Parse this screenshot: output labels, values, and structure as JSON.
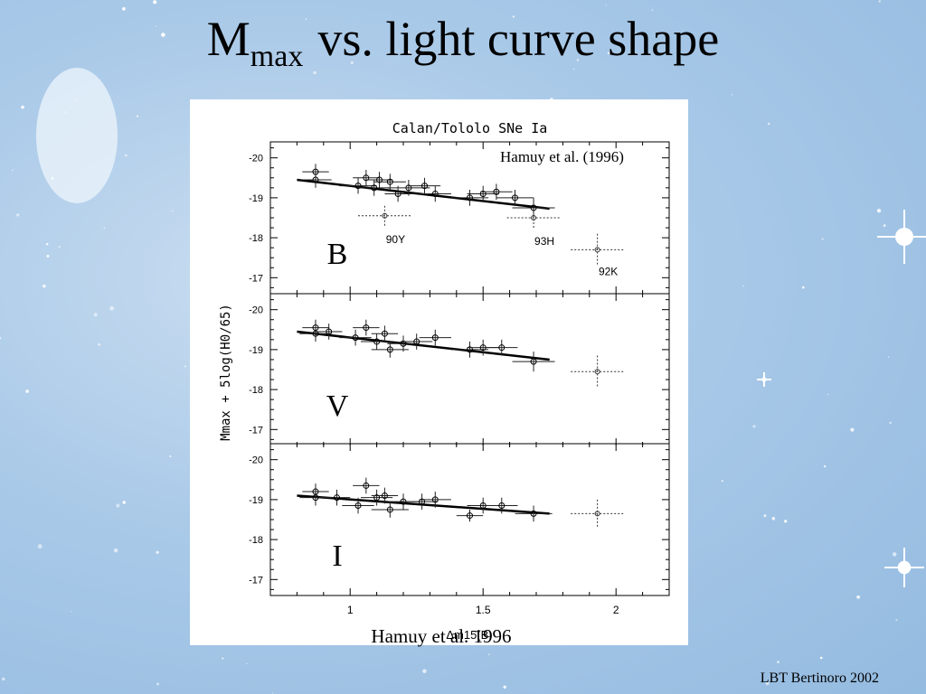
{
  "slide": {
    "title_main": "M",
    "title_sub": "max",
    "title_rest": "vs. light curve shape",
    "credit_top": "Hamuy et al. (1996)",
    "credit_bottom": "Hamuy et al. 1996",
    "footer": "LBT Bertinoro 2002"
  },
  "colors": {
    "background": "#a9c9e8",
    "panel": "#ffffff",
    "ink": "#000000"
  },
  "chart_data": {
    "type": "scatter",
    "title": "Calan/Tololo SNe Ia",
    "xlabel": "Δm15(B)",
    "ylabel": "Mmax + 5log(H0/65)",
    "xlim": [
      0.7,
      2.2
    ],
    "ylim": [
      -16.6,
      -20.4
    ],
    "x_ticks": [
      "1",
      "1.5",
      "2"
    ],
    "y_ticks": [
      "-20",
      "-19",
      "-18",
      "-17"
    ],
    "panels": [
      {
        "band": "B",
        "fit": [
          [
            0.8,
            -19.45
          ],
          [
            1.75,
            -18.73
          ]
        ],
        "points": [
          {
            "x": 0.87,
            "y": -19.65,
            "xe": 0.05,
            "ye": 0.2
          },
          {
            "x": 0.87,
            "y": -19.45,
            "xe": 0.06,
            "ye": 0.2
          },
          {
            "x": 1.03,
            "y": -19.3,
            "xe": 0.07,
            "ye": 0.2
          },
          {
            "x": 1.06,
            "y": -19.5,
            "xe": 0.05,
            "ye": 0.2
          },
          {
            "x": 1.09,
            "y": -19.25,
            "xe": 0.06,
            "ye": 0.2
          },
          {
            "x": 1.11,
            "y": -19.45,
            "xe": 0.05,
            "ye": 0.2
          },
          {
            "x": 1.15,
            "y": -19.4,
            "xe": 0.06,
            "ye": 0.2
          },
          {
            "x": 1.18,
            "y": -19.1,
            "xe": 0.05,
            "ye": 0.2
          },
          {
            "x": 1.22,
            "y": -19.25,
            "xe": 0.08,
            "ye": 0.2
          },
          {
            "x": 1.28,
            "y": -19.3,
            "xe": 0.06,
            "ye": 0.2
          },
          {
            "x": 1.32,
            "y": -19.1,
            "xe": 0.06,
            "ye": 0.2
          },
          {
            "x": 1.45,
            "y": -19.0,
            "xe": 0.07,
            "ye": 0.2
          },
          {
            "x": 1.5,
            "y": -19.1,
            "xe": 0.06,
            "ye": 0.2
          },
          {
            "x": 1.55,
            "y": -19.15,
            "xe": 0.06,
            "ye": 0.2
          },
          {
            "x": 1.62,
            "y": -19.0,
            "xe": 0.07,
            "ye": 0.2
          },
          {
            "x": 1.69,
            "y": -18.75,
            "xe": 0.08,
            "ye": 0.25
          }
        ],
        "outliers": [
          {
            "name": "90Y",
            "x": 1.13,
            "y": -18.55,
            "xe": 0.1,
            "ye": 0.25
          },
          {
            "name": "93H",
            "x": 1.69,
            "y": -18.5,
            "xe": 0.1,
            "ye": 0.25
          },
          {
            "name": "92K",
            "x": 1.93,
            "y": -17.7,
            "xe": 0.1,
            "ye": 0.4
          }
        ]
      },
      {
        "band": "V",
        "fit": [
          [
            0.8,
            -19.45
          ],
          [
            1.75,
            -18.75
          ]
        ],
        "points": [
          {
            "x": 0.87,
            "y": -19.55,
            "xe": 0.05,
            "ye": 0.2
          },
          {
            "x": 0.87,
            "y": -19.4,
            "xe": 0.06,
            "ye": 0.2
          },
          {
            "x": 0.92,
            "y": -19.45,
            "xe": 0.05,
            "ye": 0.2
          },
          {
            "x": 1.02,
            "y": -19.3,
            "xe": 0.06,
            "ye": 0.2
          },
          {
            "x": 1.06,
            "y": -19.55,
            "xe": 0.05,
            "ye": 0.2
          },
          {
            "x": 1.1,
            "y": -19.2,
            "xe": 0.06,
            "ye": 0.2
          },
          {
            "x": 1.13,
            "y": -19.4,
            "xe": 0.05,
            "ye": 0.2
          },
          {
            "x": 1.15,
            "y": -19.0,
            "xe": 0.07,
            "ye": 0.2
          },
          {
            "x": 1.2,
            "y": -19.15,
            "xe": 0.06,
            "ye": 0.2
          },
          {
            "x": 1.25,
            "y": -19.2,
            "xe": 0.06,
            "ye": 0.2
          },
          {
            "x": 1.32,
            "y": -19.3,
            "xe": 0.06,
            "ye": 0.2
          },
          {
            "x": 1.45,
            "y": -19.0,
            "xe": 0.07,
            "ye": 0.2
          },
          {
            "x": 1.5,
            "y": -19.05,
            "xe": 0.06,
            "ye": 0.2
          },
          {
            "x": 1.57,
            "y": -19.05,
            "xe": 0.06,
            "ye": 0.2
          },
          {
            "x": 1.69,
            "y": -18.7,
            "xe": 0.08,
            "ye": 0.25
          }
        ],
        "outliers": [
          {
            "name": "",
            "x": 1.93,
            "y": -18.45,
            "xe": 0.1,
            "ye": 0.4
          }
        ]
      },
      {
        "band": "I",
        "fit": [
          [
            0.8,
            -19.1
          ],
          [
            1.75,
            -18.65
          ]
        ],
        "points": [
          {
            "x": 0.87,
            "y": -19.2,
            "xe": 0.05,
            "ye": 0.2
          },
          {
            "x": 0.87,
            "y": -19.05,
            "xe": 0.06,
            "ye": 0.2
          },
          {
            "x": 0.95,
            "y": -19.05,
            "xe": 0.05,
            "ye": 0.2
          },
          {
            "x": 1.03,
            "y": -18.85,
            "xe": 0.06,
            "ye": 0.2
          },
          {
            "x": 1.06,
            "y": -19.35,
            "xe": 0.05,
            "ye": 0.2
          },
          {
            "x": 1.1,
            "y": -19.05,
            "xe": 0.06,
            "ye": 0.2
          },
          {
            "x": 1.13,
            "y": -19.1,
            "xe": 0.05,
            "ye": 0.2
          },
          {
            "x": 1.15,
            "y": -18.75,
            "xe": 0.07,
            "ye": 0.2
          },
          {
            "x": 1.2,
            "y": -18.95,
            "xe": 0.06,
            "ye": 0.2
          },
          {
            "x": 1.27,
            "y": -18.95,
            "xe": 0.06,
            "ye": 0.2
          },
          {
            "x": 1.32,
            "y": -19.0,
            "xe": 0.06,
            "ye": 0.2
          },
          {
            "x": 1.45,
            "y": -18.6,
            "xe": 0.05,
            "ye": 0.15
          },
          {
            "x": 1.5,
            "y": -18.85,
            "xe": 0.06,
            "ye": 0.2
          },
          {
            "x": 1.57,
            "y": -18.85,
            "xe": 0.06,
            "ye": 0.2
          },
          {
            "x": 1.69,
            "y": -18.65,
            "xe": 0.07,
            "ye": 0.2
          }
        ],
        "outliers": [
          {
            "name": "",
            "x": 1.93,
            "y": -18.65,
            "xe": 0.1,
            "ye": 0.35
          }
        ]
      }
    ]
  }
}
